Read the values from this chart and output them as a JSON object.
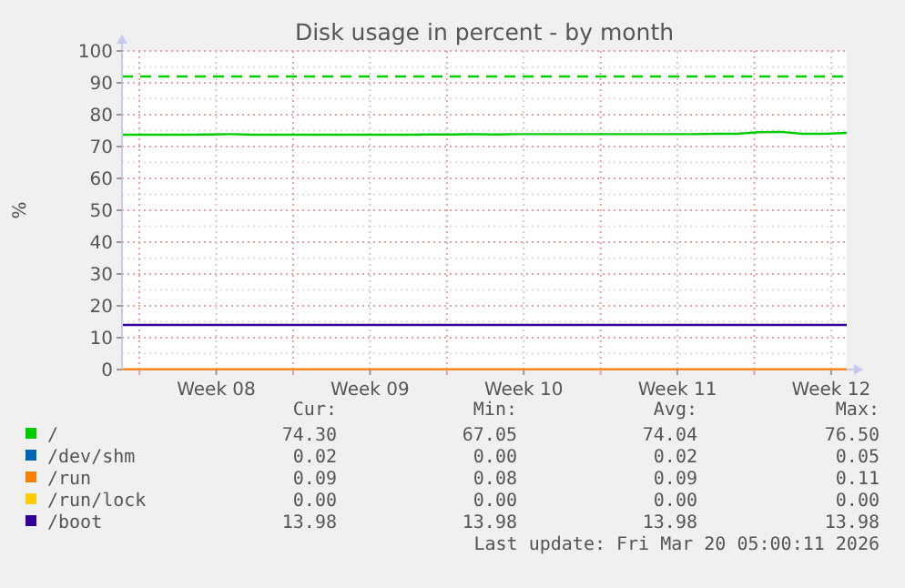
{
  "chart_data": {
    "type": "line",
    "title": "Disk usage in percent - by month",
    "ylabel": "%",
    "xlim": [
      "2026-02-15T05:00",
      "2026-03-20T05:00"
    ],
    "xticks": [
      {
        "value": "2026-02-16T00:00",
        "label": null
      },
      {
        "value": "2026-02-19T12:00",
        "label": "Week 08"
      },
      {
        "value": "2026-02-23T00:00",
        "label": null
      },
      {
        "value": "2026-02-26T12:00",
        "label": "Week 09"
      },
      {
        "value": "2026-03-02T00:00",
        "label": null
      },
      {
        "value": "2026-03-05T12:00",
        "label": "Week 10"
      },
      {
        "value": "2026-03-09T00:00",
        "label": null
      },
      {
        "value": "2026-03-12T12:00",
        "label": "Week 11"
      },
      {
        "value": "2026-03-16T00:00",
        "label": null
      },
      {
        "value": "2026-03-19T12:00",
        "label": "Week 12"
      }
    ],
    "ylim": [
      0,
      100
    ],
    "yticks": [
      0,
      10,
      20,
      30,
      40,
      50,
      60,
      70,
      80,
      90,
      100
    ],
    "grid": true,
    "legend": "bottom",
    "line_style": "solid",
    "marker": "none",
    "x": [
      "2026-02-15T05:00",
      "2026-02-16T05:00",
      "2026-02-17T05:00",
      "2026-02-18T05:00",
      "2026-02-19T05:00",
      "2026-02-20T05:00",
      "2026-02-21T05:00",
      "2026-02-22T05:00",
      "2026-02-23T05:00",
      "2026-02-24T05:00",
      "2026-02-25T05:00",
      "2026-02-26T05:00",
      "2026-02-27T05:00",
      "2026-02-28T05:00",
      "2026-03-01T05:00",
      "2026-03-02T05:00",
      "2026-03-03T05:00",
      "2026-03-04T05:00",
      "2026-03-05T05:00",
      "2026-03-06T05:00",
      "2026-03-07T05:00",
      "2026-03-08T05:00",
      "2026-03-09T05:00",
      "2026-03-10T05:00",
      "2026-03-11T05:00",
      "2026-03-12T05:00",
      "2026-03-13T05:00",
      "2026-03-14T05:00",
      "2026-03-15T05:00",
      "2026-03-16T05:00",
      "2026-03-17T05:00",
      "2026-03-18T05:00",
      "2026-03-19T05:00",
      "2026-03-20T05:00"
    ],
    "series": [
      {
        "name": "/",
        "color": "#00cc00",
        "values": [
          73.7,
          73.7,
          73.7,
          73.7,
          73.8,
          73.9,
          73.7,
          73.7,
          73.7,
          73.7,
          73.7,
          73.7,
          73.7,
          73.7,
          73.8,
          73.8,
          73.9,
          73.8,
          73.9,
          73.9,
          73.9,
          73.9,
          73.9,
          73.9,
          73.9,
          73.9,
          73.9,
          74.0,
          74.0,
          74.5,
          74.6,
          74.0,
          74.0,
          74.3
        ]
      },
      {
        "name": "/dev/shm",
        "color": "#0066b3",
        "values": [
          null,
          null,
          null,
          null,
          null,
          null,
          null,
          null,
          null,
          null,
          null,
          null,
          null,
          null,
          null,
          null,
          null,
          null,
          null,
          null,
          null,
          null,
          null,
          null,
          null,
          null,
          null,
          null,
          null,
          null,
          null,
          null,
          null,
          null
        ]
      },
      {
        "name": "/run",
        "color": "#ff8000",
        "x": [
          "2026-02-15T05:00",
          "2026-03-20T05:00"
        ],
        "values": [
          0.1,
          0.1
        ]
      },
      {
        "name": "/run/lock",
        "color": "#ffcc00",
        "values": [
          null,
          null,
          null,
          null,
          null,
          null,
          null,
          null,
          null,
          null,
          null,
          null,
          null,
          null,
          null,
          null,
          null,
          null,
          null,
          null,
          null,
          null,
          null,
          null,
          null,
          null,
          null,
          null,
          null,
          null,
          null,
          null,
          null,
          null
        ]
      },
      {
        "name": "/boot",
        "color": "#330099",
        "x": [
          "2026-02-15T05:00",
          "2026-03-20T05:00"
        ],
        "values": [
          14,
          14
        ]
      }
    ],
    "ref_lines": [
      {
        "axis": "y",
        "value": 92,
        "color": "#00cc00",
        "line_style": "dashed"
      }
    ],
    "annotations": [
      "Cur:",
      "Min:",
      "Avg:",
      "Max:",
      "74.30",
      "67.05",
      "74.04",
      "76.50",
      "0.02",
      "0.00",
      "0.02",
      "0.05",
      "0.09",
      "0.08",
      "0.09",
      "0.11",
      "0.00",
      "0.00",
      "0.00",
      "0.00",
      "13.98",
      "13.98",
      "13.98",
      "13.98",
      "Last update: Fri Mar 20 05:00:11 2026"
    ]
  }
}
